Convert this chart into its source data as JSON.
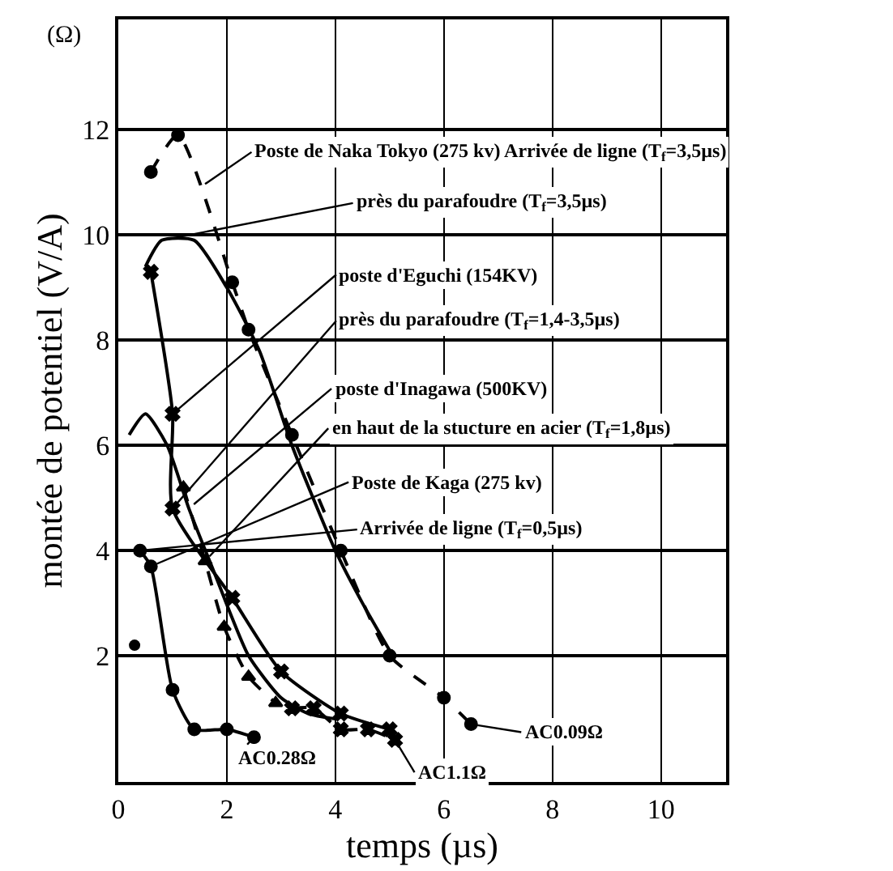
{
  "chart_data": {
    "type": "line",
    "xlabel": "temps (µs)",
    "ylabel": "montée de potentiel (V/A)",
    "xlim": [
      0,
      11.2
    ],
    "xticks": [
      0,
      2,
      4,
      6,
      8,
      10
    ],
    "ylim": [
      -0.4,
      14.1
    ],
    "yticks": [
      2,
      4,
      6,
      8,
      10,
      12
    ],
    "grid": true,
    "series": [
      {
        "color": "#000000",
        "marker": "circle",
        "line_style": "dashed",
        "x": [
          0.6,
          1.1,
          2.1,
          2.4,
          3.2,
          4.1,
          5.0,
          6.0,
          6.5
        ],
        "values": [
          11.2,
          11.9,
          9.1,
          8.2,
          6.2,
          4.0,
          2.0,
          1.2,
          0.7
        ]
      },
      {
        "color": "#000000",
        "marker": "none",
        "line_style": "solid",
        "x": [
          0.5,
          0.8,
          1.4,
          2.0,
          2.6,
          3.2,
          4.0,
          4.5,
          5.0
        ],
        "values": [
          9.4,
          9.9,
          9.9,
          9.0,
          7.8,
          6.0,
          4.0,
          3.0,
          2.1
        ]
      },
      {
        "color": "#000000",
        "marker": "cross",
        "line_style": "solid",
        "x": [
          0.6,
          1.0,
          1.0,
          2.1,
          3.0,
          4.1,
          5.0
        ],
        "values": [
          9.3,
          6.6,
          4.8,
          3.1,
          1.7,
          0.9,
          0.6
        ]
      },
      {
        "color": "#000000",
        "marker": "none",
        "line_style": "solid",
        "x": [
          0.2,
          0.5,
          0.9,
          1.3,
          1.8,
          2.4,
          3.0,
          3.5,
          4.0
        ],
        "values": [
          6.2,
          6.6,
          6.0,
          4.8,
          3.5,
          2.0,
          1.2,
          0.9,
          0.8
        ]
      },
      {
        "color": "#000000",
        "marker": "triangle",
        "line_style": "dashed",
        "x": [
          1.2,
          1.6,
          1.95,
          2.4,
          2.9
        ],
        "values": [
          5.2,
          3.8,
          2.55,
          1.6,
          1.1
        ]
      },
      {
        "color": "#000000",
        "marker": "circle",
        "line_style": "solid",
        "x": [
          0.4,
          0.6,
          1.0,
          1.4,
          2.0,
          2.5
        ],
        "values": [
          4.0,
          3.7,
          1.35,
          0.6,
          0.6,
          0.45
        ]
      },
      {
        "color": "#000000",
        "marker": "cross",
        "line_style": "dashed",
        "x": [
          3.2,
          3.6,
          4.1,
          4.6,
          5.1
        ],
        "values": [
          1.0,
          1.0,
          0.6,
          0.6,
          0.4
        ]
      },
      {
        "type": "scatter",
        "color": "#000000",
        "marker": "circle",
        "x": [
          0.3
        ],
        "values": [
          2.2
        ]
      }
    ],
    "annotations": [
      "(Ω)",
      {
        "text": "Poste de Naka Tokyo (275 kv) Arrivée de ligne (T$_{f}$=3,5µs)",
        "x": 1.5,
        "y": 10.9
      },
      {
        "text": "près du parafoudre (T$_{f}$=3,5µs)",
        "x": 0.8,
        "y": 9.9
      },
      {
        "text": "poste d'Eguchi (154KV)",
        "x": 1.0,
        "y": 6.6
      },
      {
        "text": "près du parafoudre (T$_{f}$=1,4-3,5µs)",
        "x": 1.0,
        "y": 4.8
      },
      {
        "text": "poste d'Inagawa (500KV)",
        "x": 1.3,
        "y": 4.8
      },
      {
        "text": "en haut de la stucture en acier (T$_{f}$=1,8µs)",
        "x": 1.6,
        "y": 3.8
      },
      {
        "text": "Poste de Kaga (275 kv)",
        "x": 0.6,
        "y": 3.7
      },
      {
        "text": "Arrivée de ligne (T$_{f}$=0,5µs)",
        "x": 0.4,
        "y": 4.0
      },
      {
        "text": "AC0.09Ω",
        "x": 6.5,
        "y": 0.7
      },
      {
        "text": "AC0.28Ω",
        "x": 2.5,
        "y": 0.45
      },
      {
        "text": "AC1.1Ω",
        "x": 5.1,
        "y": 0.4
      }
    ]
  }
}
